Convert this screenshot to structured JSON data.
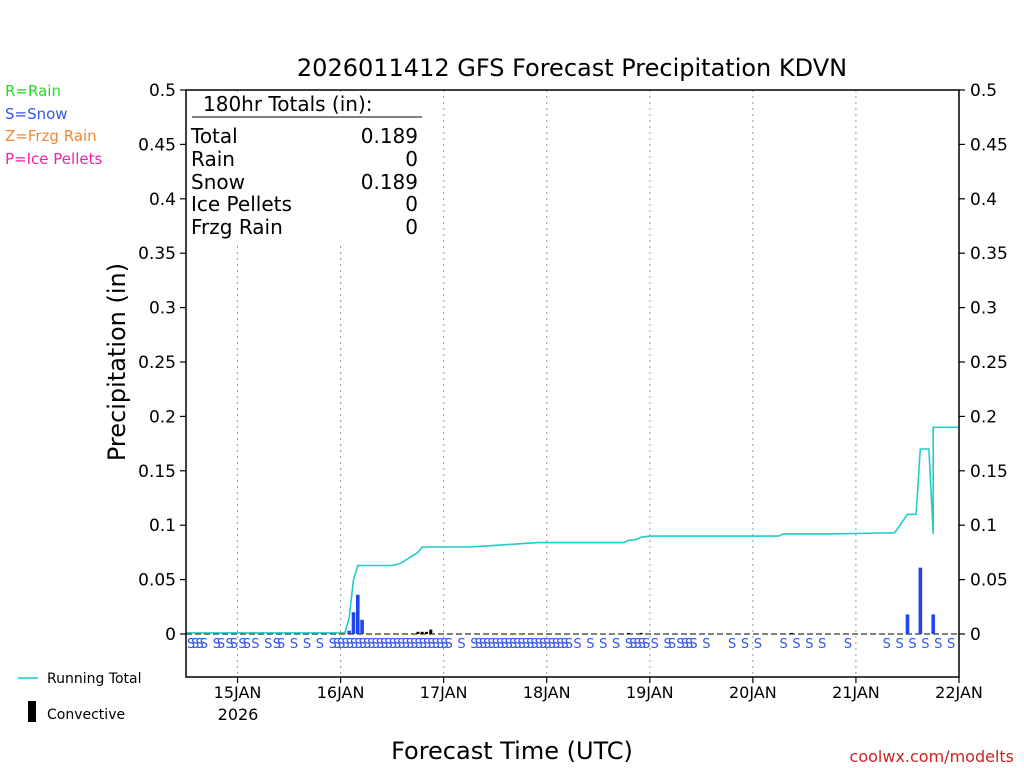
{
  "chart_data": {
    "type": "bar+line",
    "title": "2026011412 GFS Forecast Precipitation KDVN",
    "ylabel": "Precipitation (in)",
    "xlabel": "Forecast Time (UTC)",
    "ylim": [
      0,
      0.5
    ],
    "yticks": [
      "0.5",
      "0.45",
      "0.4",
      "0.35",
      "0.3",
      "0.25",
      "0.2",
      "0.15",
      "0.1",
      "0.05",
      "0"
    ],
    "ytick_values": [
      0.5,
      0.45,
      0.4,
      0.35,
      0.3,
      0.25,
      0.2,
      0.15,
      0.1,
      0.05,
      0
    ],
    "xlim_hours": [
      0,
      180
    ],
    "xticks": [
      {
        "hour": 12,
        "label": "15JAN"
      },
      {
        "hour": 36,
        "label": "16JAN"
      },
      {
        "hour": 60,
        "label": "17JAN"
      },
      {
        "hour": 84,
        "label": "18JAN"
      },
      {
        "hour": 108,
        "label": "19JAN"
      },
      {
        "hour": 132,
        "label": "20JAN"
      },
      {
        "hour": 156,
        "label": "21JAN"
      },
      {
        "hour": 180,
        "label": "22JAN"
      }
    ],
    "year_label": "2026",
    "legend_types": [
      {
        "text": "R=Rain",
        "color": "#22dd22"
      },
      {
        "text": "S=Snow",
        "color": "#3355ee"
      },
      {
        "text": "Z=Frzg Rain",
        "color": "#ee8833"
      },
      {
        "text": "P=Ice Pellets",
        "color": "#ee22aa"
      }
    ],
    "legend_series": [
      {
        "text": "Running Total",
        "color": "#22cccc"
      },
      {
        "text": "Convective",
        "color": "#000000"
      }
    ],
    "totals_box": {
      "header": "180hr Totals (in):",
      "rows": [
        {
          "label": "Total",
          "value": "0.189"
        },
        {
          "label": "Rain",
          "value": "0"
        },
        {
          "label": "Snow",
          "value": "0.189"
        },
        {
          "label": "Ice Pellets",
          "value": "0"
        },
        {
          "label": "Frzg Rain",
          "value": "0"
        }
      ]
    },
    "series": [
      {
        "name": "Running Total",
        "color": "#22cccc",
        "points": [
          [
            0,
            0.001
          ],
          [
            24,
            0.001
          ],
          [
            37,
            0.001
          ],
          [
            38,
            0.015
          ],
          [
            39,
            0.05
          ],
          [
            40,
            0.063
          ],
          [
            48,
            0.063
          ],
          [
            50,
            0.065
          ],
          [
            52,
            0.07
          ],
          [
            54,
            0.075
          ],
          [
            55,
            0.08
          ],
          [
            66,
            0.08
          ],
          [
            70,
            0.081
          ],
          [
            74,
            0.082
          ],
          [
            78,
            0.083
          ],
          [
            82,
            0.084
          ],
          [
            88,
            0.084
          ],
          [
            102,
            0.084
          ],
          [
            103,
            0.086
          ],
          [
            105,
            0.087
          ],
          [
            106,
            0.089
          ],
          [
            108,
            0.09
          ],
          [
            114,
            0.09
          ],
          [
            138,
            0.09
          ],
          [
            139,
            0.092
          ],
          [
            150,
            0.092
          ],
          [
            174,
            0.092
          ],
          [
            165,
            0.093
          ],
          [
            168,
            0.11
          ],
          [
            170,
            0.11
          ],
          [
            171,
            0.17
          ],
          [
            173,
            0.17
          ],
          [
            174,
            0.19
          ],
          [
            180,
            0.19
          ]
        ]
      },
      {
        "name": "Snow",
        "color": "#2244ee",
        "bars": [
          [
            38,
            0.003
          ],
          [
            39,
            0.02
          ],
          [
            40,
            0.036
          ],
          [
            41,
            0.013
          ],
          [
            168,
            0.018
          ],
          [
            171,
            0.061
          ],
          [
            174,
            0.018
          ]
        ]
      },
      {
        "name": "Convective",
        "color": "#000000",
        "bars": [
          [
            54,
            0.002
          ],
          [
            55,
            0.002
          ],
          [
            56,
            0.002
          ],
          [
            57,
            0.004
          ],
          [
            103,
            0.001
          ],
          [
            106,
            0.001
          ],
          [
            141,
            0.001
          ]
        ]
      }
    ],
    "ptype_markers": {
      "symbol": "S",
      "color": "#3355ee",
      "hours": [
        0,
        1,
        2,
        3,
        6,
        7,
        9,
        10,
        12,
        13,
        15,
        18,
        20,
        21,
        24,
        27,
        30,
        33,
        34,
        35,
        36,
        37,
        38,
        39,
        40,
        41,
        42,
        43,
        44,
        45,
        46,
        47,
        48,
        49,
        50,
        51,
        52,
        53,
        54,
        55,
        56,
        57,
        58,
        59,
        60,
        63,
        66,
        67,
        68,
        69,
        70,
        71,
        72,
        73,
        74,
        75,
        76,
        77,
        78,
        79,
        80,
        81,
        82,
        83,
        84,
        85,
        86,
        87,
        88,
        90,
        93,
        96,
        99,
        102,
        103,
        104,
        105,
        106,
        108,
        111,
        112,
        114,
        115,
        116,
        117,
        120,
        126,
        129,
        132,
        138,
        141,
        144,
        147,
        153,
        162,
        165,
        168,
        171,
        174,
        177
      ]
    },
    "credit": "coolwx.com/modelts"
  }
}
